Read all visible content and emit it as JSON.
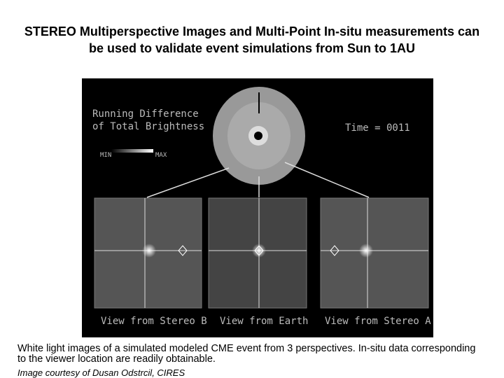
{
  "title": "STEREO Multiperspective Images and Multi-Point In-situ measurements can be used to validate event simulations from Sun to 1AU",
  "image": {
    "heading": [
      "Running Difference",
      "of Total Brightness"
    ],
    "time": "Time = 0011",
    "scale_min": "MIN",
    "scale_max": "MAX",
    "views": [
      "View from Stereo B",
      "View from Earth",
      "View from Stereo A"
    ]
  },
  "caption": "White light images of a simulated modeled CME event from 3 perspectives. In-situ data corresponding to the viewer location are readily obtainable.",
  "credit": "Image courtesy of Dusan Odstrcil, CIRES"
}
